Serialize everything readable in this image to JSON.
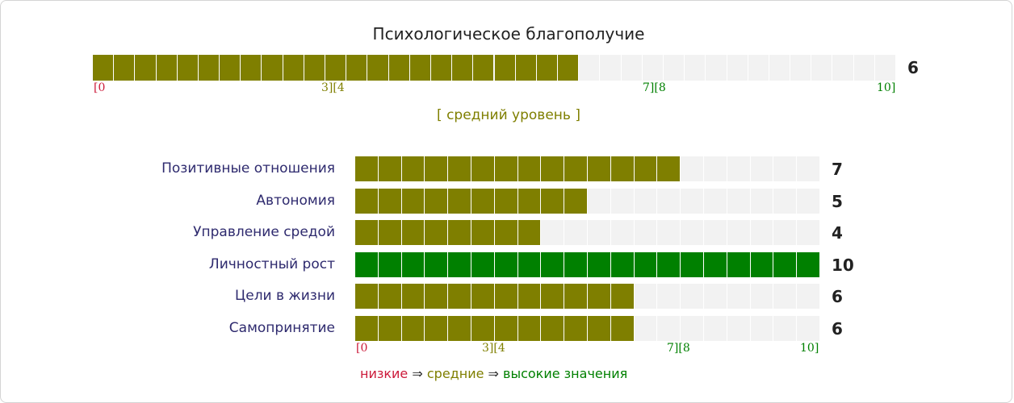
{
  "chart_data": [
    {
      "type": "bar",
      "title": "Психологическое благополучие",
      "categories": [
        "Психологическое благополучие"
      ],
      "values": [
        6
      ],
      "xlim": [
        0,
        10
      ],
      "segments": 10,
      "range_ticks": [
        "[0",
        "3][4",
        "7][8",
        "10]"
      ],
      "level_text": "[ средний уровень ]"
    },
    {
      "type": "bar",
      "orientation": "horizontal",
      "categories": [
        "Позитивные отношения",
        "Автономия",
        "Управление средой",
        "Личностный рост",
        "Цели в жизни",
        "Самопринятие"
      ],
      "values": [
        7,
        5,
        4,
        10,
        6,
        6
      ],
      "xlim": [
        0,
        10
      ],
      "range_ticks": [
        "[0",
        "3][4",
        "7][8",
        "10]"
      ]
    }
  ],
  "legend": {
    "low": "низкие",
    "mid": "средние",
    "high": "высокие значения",
    "arrow": "⇒"
  },
  "colors": {
    "low": "#cc1a3a",
    "mid": "#7f7f00",
    "high": "#008000",
    "track": "#f2f2f2"
  }
}
